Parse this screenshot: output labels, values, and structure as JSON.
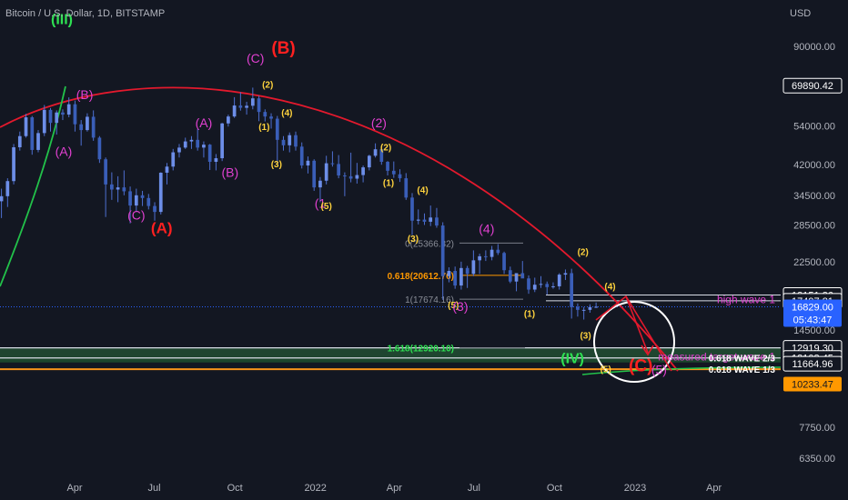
{
  "header": {
    "symbol": "Bitcoin / U.S. Dollar",
    "sep1": ", ",
    "interval": "1D",
    "sep2": ", ",
    "exchange": "BITSTAMP"
  },
  "price_axis": {
    "currency": "USD"
  },
  "colors": {
    "background": "#131722",
    "candles": "#3a5eb8",
    "candle_wicks": "#4e6fd0",
    "arc": "#e3192d",
    "green_curve": "#22c24a",
    "support_band": "#2a6b3c",
    "wave_1_3_line": "#f7931a",
    "magenta": "#e040d0",
    "yellow": "#ffd33d",
    "red_label": "#ff2020",
    "green_label": "#2ee052",
    "current_price": "#2962ff",
    "fib_0618": "#ff9800"
  },
  "chart_data": {
    "type": "candlestick",
    "y_scale": "log",
    "ylim": [
      6000,
      130000
    ],
    "x_ticks": [
      "Apr",
      "Jul",
      "Oct",
      "2022",
      "Apr",
      "Jul",
      "Oct",
      "2023",
      "Apr"
    ],
    "y_ticks": [
      90000.0,
      69890.42,
      54000.0,
      42000.0,
      34500.0,
      28500.0,
      22500.0,
      18151.36,
      17497.81,
      14500.0,
      12919.3,
      12108.45,
      11664.96,
      10233.47,
      7750.0,
      6350.0
    ],
    "y_tick_labels": [
      "90000.00",
      "54000.00",
      "42000.00",
      "34500.00",
      "28500.00",
      "22500.00",
      "14500.00",
      "7750.00",
      "6350.00"
    ],
    "price_badges": [
      {
        "value": 69890.42,
        "text": "69890.42",
        "style": "white"
      },
      {
        "value": 18151.36,
        "text": "18151.36",
        "style": "white"
      },
      {
        "value": 17497.81,
        "text": "17497.81",
        "style": "white"
      },
      {
        "value": 12919.3,
        "text": "12919.30",
        "style": "white"
      },
      {
        "value": 12108.45,
        "text": "12108.45",
        "style": "white"
      },
      {
        "value": 11664.96,
        "text": "11664.96",
        "style": "white"
      },
      {
        "value": 10233.47,
        "text": "10233.47",
        "style": "orange"
      }
    ],
    "current_price": {
      "value": 16829.0,
      "text": "16829.00",
      "countdown": "05:43:47"
    },
    "candles": [
      [
        "2021-01-01",
        29000,
        33500,
        28100,
        32200
      ],
      [
        "2021-01-08",
        32200,
        41900,
        31500,
        38200
      ],
      [
        "2021-01-15",
        38200,
        38800,
        30100,
        33200
      ],
      [
        "2021-01-22",
        33200,
        36000,
        29800,
        34300
      ],
      [
        "2021-01-29",
        34300,
        38500,
        32000,
        37800
      ],
      [
        "2021-02-05",
        37800,
        48000,
        37000,
        47000
      ],
      [
        "2021-02-12",
        47000,
        52000,
        46000,
        50500
      ],
      [
        "2021-02-19",
        50500,
        58300,
        50000,
        57000
      ],
      [
        "2021-02-26",
        57000,
        57500,
        44800,
        46200
      ],
      [
        "2021-03-05",
        46200,
        52500,
        45500,
        51500
      ],
      [
        "2021-03-12",
        51500,
        61700,
        50500,
        59800
      ],
      [
        "2021-03-19",
        59800,
        60500,
        52000,
        55000
      ],
      [
        "2021-03-26",
        55000,
        59600,
        51000,
        58800
      ],
      [
        "2021-04-02",
        58800,
        60000,
        56000,
        58000
      ],
      [
        "2021-04-09",
        58000,
        64800,
        57000,
        62000
      ],
      [
        "2021-04-16",
        62000,
        63500,
        52000,
        54500
      ],
      [
        "2021-04-23",
        54500,
        56000,
        47500,
        52500
      ],
      [
        "2021-04-30",
        52500,
        58500,
        52000,
        57200
      ],
      [
        "2021-05-07",
        57200,
        59600,
        49000,
        50000
      ],
      [
        "2021-05-14",
        50000,
        50500,
        42500,
        43500
      ],
      [
        "2021-05-21",
        43500,
        44000,
        30000,
        37000
      ],
      [
        "2021-05-28",
        37000,
        40000,
        33500,
        35800
      ],
      [
        "2021-06-04",
        35800,
        39000,
        33000,
        36300
      ],
      [
        "2021-06-11",
        36300,
        40500,
        34500,
        35400
      ],
      [
        "2021-06-18",
        35400,
        36500,
        28800,
        32300
      ],
      [
        "2021-06-25",
        32300,
        36000,
        31000,
        34500
      ],
      [
        "2021-07-02",
        34500,
        35500,
        32200,
        33900
      ],
      [
        "2021-07-09",
        33900,
        34800,
        31500,
        32200
      ],
      [
        "2021-07-16",
        32200,
        33000,
        29300,
        31000
      ],
      [
        "2021-07-23",
        31000,
        40000,
        30500,
        39900
      ],
      [
        "2021-07-30",
        39900,
        42500,
        37000,
        41500
      ],
      [
        "2021-08-06",
        41500,
        46500,
        40500,
        45500
      ],
      [
        "2021-08-13",
        45500,
        48000,
        44000,
        46900
      ],
      [
        "2021-08-20",
        46900,
        50000,
        46500,
        48800
      ],
      [
        "2021-08-27",
        48800,
        50500,
        46500,
        49300
      ],
      [
        "2021-09-03",
        49300,
        52900,
        46000,
        46900
      ],
      [
        "2021-09-10",
        46900,
        48800,
        44000,
        47800
      ],
      [
        "2021-09-17",
        47800,
        48000,
        40600,
        42800
      ],
      [
        "2021-09-24",
        42800,
        45000,
        40500,
        43800
      ],
      [
        "2021-10-01",
        43800,
        55000,
        43000,
        54800
      ],
      [
        "2021-10-08",
        54800,
        58000,
        53700,
        57300
      ],
      [
        "2021-10-15",
        57300,
        64900,
        56800,
        61500
      ],
      [
        "2021-10-22",
        61500,
        67000,
        59500,
        60600
      ],
      [
        "2021-10-29",
        60600,
        63000,
        58000,
        61400
      ],
      [
        "2021-11-05",
        61400,
        69000,
        60000,
        64400
      ],
      [
        "2021-11-12",
        64400,
        65500,
        55600,
        59000
      ],
      [
        "2021-11-19",
        59000,
        60000,
        55500,
        57300
      ],
      [
        "2021-11-26",
        57300,
        58500,
        53000,
        56500
      ],
      [
        "2021-12-03",
        56500,
        57500,
        42000,
        49300
      ],
      [
        "2021-12-10",
        49300,
        50500,
        46000,
        47600
      ],
      [
        "2021-12-17",
        47600,
        51700,
        45500,
        50800
      ],
      [
        "2021-12-24",
        50800,
        52000,
        46000,
        47200
      ],
      [
        "2021-12-31",
        47200,
        48500,
        41000,
        41800
      ],
      [
        "2022-01-07",
        41800,
        44300,
        39700,
        43100
      ],
      [
        "2022-01-14",
        43100,
        43500,
        35500,
        36300
      ],
      [
        "2022-01-21",
        36300,
        38800,
        33000,
        37900
      ],
      [
        "2022-01-28",
        37900,
        44500,
        37000,
        42400
      ],
      [
        "2022-02-04",
        42400,
        45800,
        41500,
        42200
      ],
      [
        "2022-02-11",
        42200,
        44700,
        38500,
        39200
      ],
      [
        "2022-02-18",
        39200,
        40000,
        34300,
        39000
      ],
      [
        "2022-02-25",
        39000,
        45400,
        37500,
        38400
      ],
      [
        "2022-03-04",
        38400,
        42500,
        37200,
        39300
      ],
      [
        "2022-03-11",
        39300,
        41800,
        37500,
        41300
      ],
      [
        "2022-03-18",
        41300,
        44800,
        40500,
        44500
      ],
      [
        "2022-03-25",
        44500,
        48200,
        44000,
        46400
      ],
      [
        "2022-04-01",
        46400,
        47200,
        42000,
        42800
      ],
      [
        "2022-04-08",
        42800,
        43000,
        39200,
        40400
      ],
      [
        "2022-04-15",
        40400,
        42900,
        38600,
        39500
      ],
      [
        "2022-04-22",
        39500,
        40800,
        37600,
        38500
      ],
      [
        "2022-04-29",
        38500,
        39800,
        33500,
        34000
      ],
      [
        "2022-05-06",
        34000,
        35000,
        26700,
        29300
      ],
      [
        "2022-05-13",
        29300,
        31500,
        28600,
        29500
      ],
      [
        "2022-05-20",
        29500,
        30700,
        28500,
        29100
      ],
      [
        "2022-05-27",
        29100,
        32300,
        28300,
        29900
      ],
      [
        "2022-06-03",
        29900,
        31800,
        28000,
        28400
      ],
      [
        "2022-06-10",
        28400,
        29000,
        17600,
        20500
      ],
      [
        "2022-06-17",
        20500,
        21700,
        19700,
        21200
      ],
      [
        "2022-06-24",
        21200,
        21800,
        18900,
        19300
      ],
      [
        "2022-07-01",
        19300,
        22500,
        18800,
        21600
      ],
      [
        "2022-07-08",
        21600,
        21900,
        19000,
        20800
      ],
      [
        "2022-07-15",
        20800,
        24200,
        20500,
        22700
      ],
      [
        "2022-07-22",
        22700,
        23700,
        20800,
        23300
      ],
      [
        "2022-07-29",
        23300,
        24200,
        22600,
        23200
      ],
      [
        "2022-08-05",
        23200,
        24900,
        22700,
        24300
      ],
      [
        "2022-08-12",
        24300,
        25200,
        23500,
        23800
      ],
      [
        "2022-08-19",
        23800,
        24000,
        20800,
        21300
      ],
      [
        "2022-08-26",
        21300,
        21800,
        19600,
        19800
      ],
      [
        "2022-09-02",
        19800,
        20400,
        18600,
        20900
      ],
      [
        "2022-09-09",
        20900,
        22600,
        20300,
        20200
      ],
      [
        "2022-09-16",
        20200,
        20600,
        18300,
        18800
      ],
      [
        "2022-09-23",
        18800,
        20300,
        18500,
        19400
      ],
      [
        "2022-09-30",
        19400,
        20500,
        19000,
        19500
      ],
      [
        "2022-10-07",
        19500,
        19800,
        18200,
        19100
      ],
      [
        "2022-10-14",
        19100,
        19700,
        18900,
        19200
      ],
      [
        "2022-10-21",
        19200,
        20900,
        18800,
        20700
      ],
      [
        "2022-10-28",
        20700,
        21400,
        20000,
        20900
      ],
      [
        "2022-11-04",
        20900,
        21500,
        15600,
        16800
      ],
      [
        "2022-11-11",
        16800,
        17200,
        15800,
        16500
      ],
      [
        "2022-11-18",
        16500,
        16800,
        15500,
        16500
      ],
      [
        "2022-11-25",
        16500,
        17100,
        16200,
        16800
      ],
      [
        "2022-12-02",
        16800,
        17300,
        16700,
        16829
      ]
    ],
    "annotations": [
      {
        "text": "(III)",
        "date": "2021-04-01",
        "price": 104000,
        "color": "green",
        "size": 16
      },
      {
        "text": "(B)",
        "date": "2021-04-27",
        "price": 64000,
        "color": "magenta",
        "size": 14
      },
      {
        "text": "(A)",
        "date": "2021-04-03",
        "price": 44500,
        "color": "magenta",
        "size": 14
      },
      {
        "text": "(C)",
        "date": "2021-06-25",
        "price": 29500,
        "color": "magenta",
        "size": 14
      },
      {
        "text": "(A)",
        "date": "2021-07-24",
        "price": 27000,
        "color": "red",
        "size": 17
      },
      {
        "text": "(A)",
        "date": "2021-09-10",
        "price": 53500,
        "color": "magenta",
        "size": 14
      },
      {
        "text": "(B)",
        "date": "2021-10-10",
        "price": 38900,
        "color": "magenta",
        "size": 14
      },
      {
        "text": "(C)",
        "date": "2021-11-08",
        "price": 81000,
        "color": "magenta",
        "size": 14
      },
      {
        "text": "(B)",
        "date": "2021-12-10",
        "price": 86000,
        "color": "red",
        "size": 19
      },
      {
        "text": "(2)",
        "date": "2021-11-22",
        "price": 69000,
        "color": "yellow",
        "size": 10
      },
      {
        "text": "(1)",
        "date": "2021-11-18",
        "price": 52500,
        "color": "yellow",
        "size": 10
      },
      {
        "text": "(4)",
        "date": "2021-12-14",
        "price": 57500,
        "color": "yellow",
        "size": 10
      },
      {
        "text": "(3)",
        "date": "2021-12-02",
        "price": 41300,
        "color": "yellow",
        "size": 10
      },
      {
        "text": "(1",
        "date": "2022-01-21",
        "price": 31800,
        "color": "magenta",
        "size": 14
      },
      {
        "text": "(5)",
        "date": "2022-01-28",
        "price": 31600,
        "color": "yellow",
        "size": 10
      },
      {
        "text": "(2)",
        "date": "2022-03-29",
        "price": 53500,
        "color": "magenta",
        "size": 14
      },
      {
        "text": "(2)",
        "date": "2022-04-06",
        "price": 46000,
        "color": "yellow",
        "size": 10
      },
      {
        "text": "(1)",
        "date": "2022-04-09",
        "price": 36700,
        "color": "yellow",
        "size": 10
      },
      {
        "text": "(4)",
        "date": "2022-05-18",
        "price": 35000,
        "color": "yellow",
        "size": 10
      },
      {
        "text": "(3)",
        "date": "2022-05-07",
        "price": 25600,
        "color": "yellow",
        "size": 10
      },
      {
        "text": "(4)",
        "date": "2022-07-30",
        "price": 27000,
        "color": "magenta",
        "size": 14
      },
      {
        "text": "(5)",
        "date": "2022-06-22",
        "price": 16700,
        "color": "yellow",
        "size": 10
      },
      {
        "text": "(3)",
        "date": "2022-06-30",
        "price": 16400,
        "color": "magenta",
        "size": 14
      },
      {
        "text": "(1)",
        "date": "2022-09-17",
        "price": 15800,
        "color": "yellow",
        "size": 10
      },
      {
        "text": "(2)",
        "date": "2022-11-17",
        "price": 23500,
        "color": "yellow",
        "size": 10
      },
      {
        "text": "(3)",
        "date": "2022-11-20",
        "price": 13700,
        "color": "yellow",
        "size": 10
      },
      {
        "text": "(4)",
        "date": "2022-12-18",
        "price": 18800,
        "color": "yellow",
        "size": 10
      },
      {
        "text": "(IV)",
        "date": "2022-11-05",
        "price": 11700,
        "color": "green",
        "size": 16
      },
      {
        "text": "(5)",
        "date": "2022-12-13",
        "price": 11050,
        "color": "yellow",
        "size": 10
      },
      {
        "text": "(C)",
        "date": "2023-01-22",
        "price": 11100,
        "color": "red",
        "size": 19
      },
      {
        "text": "(5)",
        "date": "2023-02-12",
        "price": 10900,
        "color": "magenta",
        "size": 14
      }
    ],
    "fib_levels": [
      {
        "label": "0(25366.82)",
        "value": 25366.82,
        "color": "gray"
      },
      {
        "label": "0.618(20612.76)",
        "value": 20612.76,
        "color": "orange"
      },
      {
        "label": "1(17674.16)",
        "value": 17674.16,
        "color": "gray"
      },
      {
        "label": "1.618(12920.10)",
        "value": 12920.1,
        "color": "green"
      }
    ],
    "level_labels": {
      "high_wave_1": "high wave 1",
      "measured_target": "measured target wave 1",
      "wave_2_3": "0.618 WAVE 2/3",
      "wave_1_3": "0.618 WAVE 1/3"
    }
  }
}
